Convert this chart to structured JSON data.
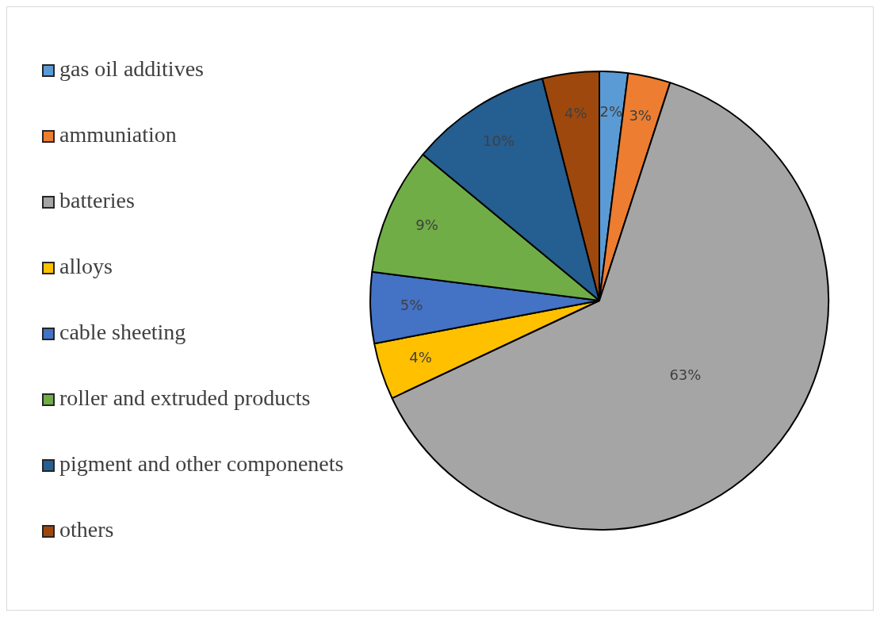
{
  "chart_data": {
    "type": "pie",
    "categories": [
      "gas oil additives",
      "ammuniation",
      "batteries",
      "alloys",
      "cable sheeting",
      "roller and extruded products",
      "pigment and other componenets",
      "others"
    ],
    "values": [
      2,
      3,
      63,
      4,
      5,
      9,
      10,
      4
    ],
    "colors": [
      "#5b9bd5",
      "#ed7d31",
      "#a5a5a5",
      "#ffc000",
      "#4472c4",
      "#70ad47",
      "#255e91",
      "#9e480e"
    ],
    "value_labels": [
      "2%",
      "3%",
      "63%",
      "4%",
      "5%",
      "9%",
      "10%",
      "4%"
    ],
    "legend": "left"
  }
}
